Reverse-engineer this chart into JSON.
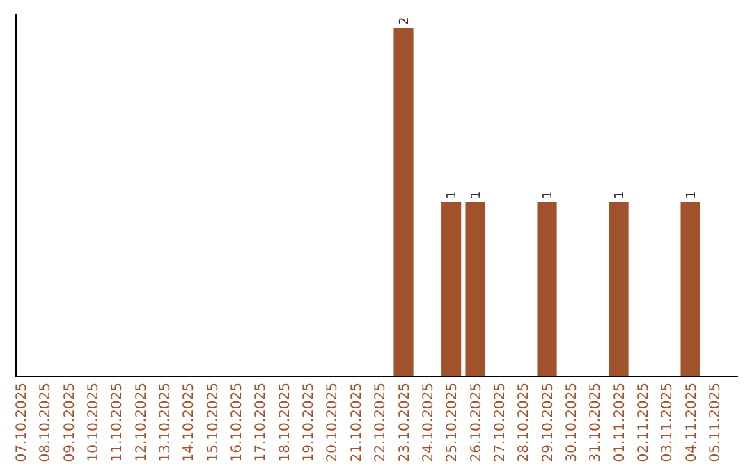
{
  "chart_data": {
    "type": "bar",
    "categories": [
      "07.10.2025",
      "08.10.2025",
      "09.10.2025",
      "10.10.2025",
      "11.10.2025",
      "12.10.2025",
      "13.10.2025",
      "14.10.2025",
      "15.10.2025",
      "16.10.2025",
      "17.10.2025",
      "18.10.2025",
      "19.10.2025",
      "20.10.2025",
      "21.10.2025",
      "22.10.2025",
      "23.10.2025",
      "24.10.2025",
      "25.10.2025",
      "26.10.2025",
      "27.10.2025",
      "28.10.2025",
      "29.10.2025",
      "30.10.2025",
      "31.10.2025",
      "01.11.2025",
      "02.11.2025",
      "03.11.2025",
      "04.11.2025",
      "05.11.2025"
    ],
    "values": [
      null,
      null,
      null,
      null,
      null,
      null,
      null,
      null,
      null,
      null,
      null,
      null,
      null,
      null,
      null,
      null,
      2,
      null,
      1,
      1,
      null,
      null,
      1,
      null,
      null,
      1,
      null,
      null,
      1,
      null
    ],
    "data_labels": true,
    "color": "#a0522d",
    "grid": false,
    "legend": false
  }
}
